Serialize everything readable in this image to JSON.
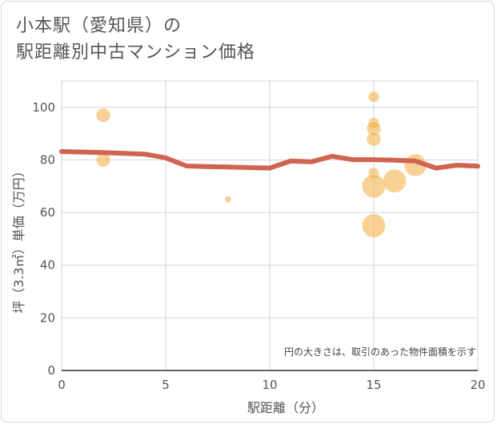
{
  "title": {
    "line1": "小本駅（愛知県）の",
    "line2": "駅距離別中古マンション価格"
  },
  "chart_data": {
    "type": "scatter",
    "xlabel": "駅距離（分）",
    "ylabel": "坪（3.3㎡）単価（万円）",
    "xlim": [
      0,
      20
    ],
    "ylim": [
      0,
      110
    ],
    "x_ticks": [
      0,
      5,
      10,
      15,
      20
    ],
    "y_ticks": [
      0,
      20,
      40,
      60,
      80,
      100
    ],
    "grid": true,
    "annotation": "円の大きさは、取引のあった物件面積を示す",
    "colors": {
      "bubble": "#f3b24f",
      "line": "#d0644f",
      "grid": "#ccd6e3"
    },
    "bubbles": [
      {
        "x": 2,
        "y": 97,
        "size": 3
      },
      {
        "x": 2,
        "y": 80,
        "size": 3
      },
      {
        "x": 8,
        "y": 65,
        "size": 0.3
      },
      {
        "x": 15,
        "y": 104,
        "size": 1.5
      },
      {
        "x": 15,
        "y": 94,
        "size": 1.5
      },
      {
        "x": 15,
        "y": 92,
        "size": 3
      },
      {
        "x": 15,
        "y": 88,
        "size": 3
      },
      {
        "x": 15,
        "y": 75,
        "size": 1.5
      },
      {
        "x": 15,
        "y": 70,
        "size": 10
      },
      {
        "x": 15,
        "y": 55,
        "size": 10
      },
      {
        "x": 16,
        "y": 72,
        "size": 10
      },
      {
        "x": 17,
        "y": 78,
        "size": 9
      }
    ],
    "trend": {
      "x": [
        0,
        1,
        2,
        3,
        4,
        5,
        6,
        7,
        8,
        9,
        10,
        11,
        12,
        13,
        14,
        15,
        16,
        17,
        18,
        19,
        20
      ],
      "y": [
        83.2,
        83,
        82.8,
        82.5,
        82.2,
        80.8,
        77.7,
        77.5,
        77.3,
        77.1,
        76.9,
        79.6,
        79.3,
        81.4,
        80.1,
        80.1,
        79.9,
        79.6,
        76.9,
        78,
        77.6
      ]
    }
  }
}
